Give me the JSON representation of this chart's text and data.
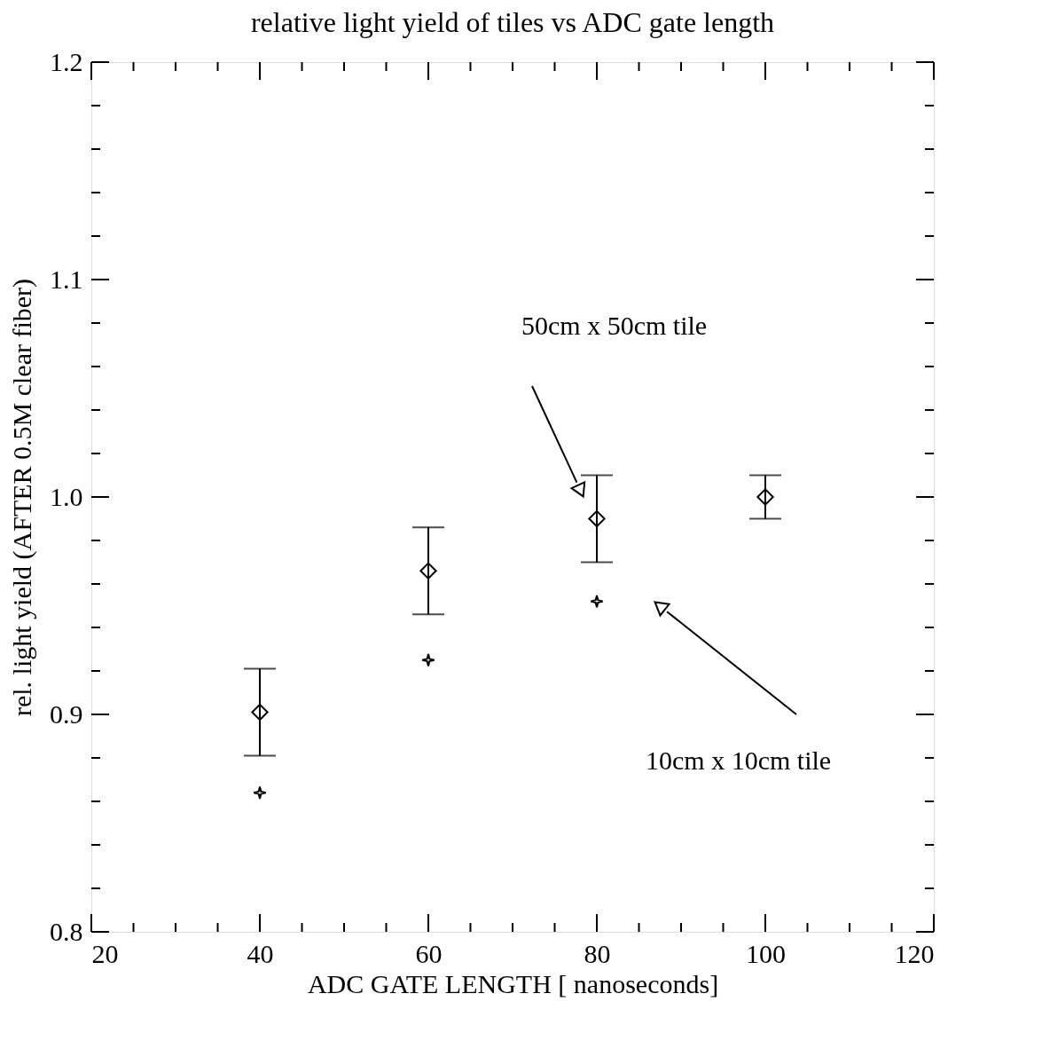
{
  "chart_data": {
    "type": "scatter",
    "title": "relative light yield of tiles vs ADC gate length",
    "xlabel": "ADC GATE LENGTH [ nanoseconds]",
    "ylabel": "rel. light yield (AFTER 0.5M clear fiber)",
    "xlim": [
      20,
      120
    ],
    "ylim": [
      0.8,
      1.2
    ],
    "xticks": [
      20,
      {
        "value": 25,
        "label": null
      },
      {
        "value": 30,
        "label": null
      },
      {
        "value": 35,
        "label": null
      },
      40,
      {
        "value": 45,
        "label": null
      },
      {
        "value": 50,
        "label": null
      },
      {
        "value": 55,
        "label": null
      },
      60,
      {
        "value": 65,
        "label": null
      },
      {
        "value": 70,
        "label": null
      },
      {
        "value": 75,
        "label": null
      },
      80,
      {
        "value": 85,
        "label": null
      },
      {
        "value": 90,
        "label": null
      },
      {
        "value": 95,
        "label": null
      },
      100,
      {
        "value": 105,
        "label": null
      },
      {
        "value": 110,
        "label": null
      },
      {
        "value": 115,
        "label": null
      },
      120
    ],
    "yticks": [
      0.8,
      {
        "value": 0.82,
        "label": null
      },
      {
        "value": 0.84,
        "label": null
      },
      {
        "value": 0.86,
        "label": null
      },
      {
        "value": 0.88,
        "label": null
      },
      0.9,
      {
        "value": 0.92,
        "label": null
      },
      {
        "value": 0.94,
        "label": null
      },
      {
        "value": 0.96,
        "label": null
      },
      {
        "value": 0.98,
        "label": null
      },
      {
        "value": 1.0,
        "label": "1.0"
      },
      {
        "value": 1.02,
        "label": null
      },
      {
        "value": 1.04,
        "label": null
      },
      {
        "value": 1.06,
        "label": null
      },
      {
        "value": 1.08,
        "label": null
      },
      1.1,
      {
        "value": 1.12,
        "label": null
      },
      {
        "value": 1.14,
        "label": null
      },
      {
        "value": 1.16,
        "label": null
      },
      {
        "value": 1.18,
        "label": null
      },
      1.2
    ],
    "grid": false,
    "series": [
      {
        "color": "#000000",
        "marker": "diamond",
        "x": [
          40,
          60,
          80,
          100
        ],
        "values": [
          0.901,
          0.966,
          0.99,
          1.0
        ],
        "errors": [
          0.02,
          0.02,
          0.02,
          0.01
        ]
      },
      {
        "color": "#000000",
        "marker": "star",
        "x": [
          40,
          60,
          80
        ],
        "values": [
          0.864,
          0.925,
          0.952
        ]
      }
    ],
    "annotations": [
      "50cm x 50cm tile",
      "10cm x 10cm tile"
    ]
  }
}
